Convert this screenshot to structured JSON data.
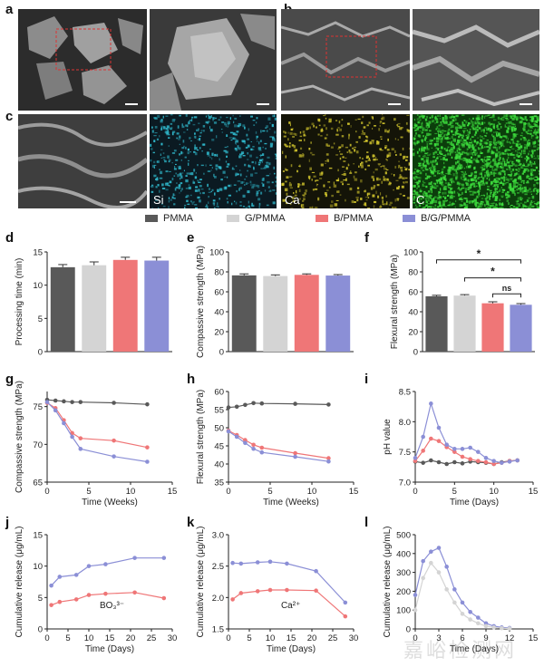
{
  "panels": {
    "a": "a",
    "b": "b",
    "c": "c",
    "d": "d",
    "e": "e",
    "f": "f",
    "g": "g",
    "h": "h",
    "i": "i",
    "j": "j",
    "k": "k",
    "l": "l"
  },
  "eds_labels": [
    "Si",
    "Ca",
    "C"
  ],
  "eds_colors": [
    "#2fb6c9",
    "#cdc12c",
    "#3ddc3d"
  ],
  "legend": [
    {
      "name": "PMMA",
      "color": "#595959"
    },
    {
      "name": "G/PMMA",
      "color": "#d4d4d4"
    },
    {
      "name": "B/PMMA",
      "color": "#ef7677"
    },
    {
      "name": "B/G/PMMA",
      "color": "#8b8fd6"
    }
  ],
  "watermark": "嘉峪检测网",
  "chart_data": [
    {
      "id": "d",
      "type": "bar",
      "categories": [
        "PMMA",
        "G/PMMA",
        "B/PMMA",
        "B/G/PMMA"
      ],
      "values": [
        12.7,
        13.0,
        13.8,
        13.7
      ],
      "errors": [
        0.4,
        0.5,
        0.4,
        0.5
      ],
      "ylabel": "Processing time (min)",
      "ylim": [
        0,
        15
      ],
      "yticks": [
        0,
        5,
        10,
        15
      ]
    },
    {
      "id": "e",
      "type": "bar",
      "categories": [
        "PMMA",
        "G/PMMA",
        "B/PMMA",
        "B/G/PMMA"
      ],
      "values": [
        76.5,
        75.8,
        77.0,
        76.3
      ],
      "errors": [
        1.5,
        1.2,
        1.0,
        1.0
      ],
      "ylabel": "Compassive strength (MPa)",
      "ylim": [
        0,
        100
      ],
      "yticks": [
        0,
        20,
        40,
        60,
        80,
        100
      ]
    },
    {
      "id": "f",
      "type": "bar",
      "categories": [
        "PMMA",
        "G/PMMA",
        "B/PMMA",
        "B/G/PMMA"
      ],
      "values": [
        55.5,
        56.2,
        48.5,
        47.0
      ],
      "errors": [
        1.0,
        1.0,
        1.5,
        1.2
      ],
      "ylabel": "Flexural strength (MPa)",
      "ylim": [
        0,
        100
      ],
      "yticks": [
        0,
        20,
        40,
        60,
        80,
        100
      ],
      "annotations": [
        "*",
        "*",
        "ns"
      ]
    },
    {
      "id": "g",
      "type": "line",
      "xlabel": "Time (Weeks)",
      "ylabel": "Compassive strength (MPa)",
      "xlim": [
        0,
        15
      ],
      "ylim": [
        65,
        77
      ],
      "xticks": [
        0,
        5,
        10,
        15
      ],
      "yticks": [
        65,
        70,
        75
      ],
      "x": [
        0,
        1,
        2,
        3,
        4,
        8,
        12
      ],
      "series": [
        {
          "values": [
            75.9,
            75.8,
            75.7,
            75.6,
            75.6,
            75.5,
            75.3
          ],
          "color": "#595959"
        },
        {
          "values": [
            75.5,
            74.8,
            73.2,
            71.5,
            70.8,
            70.5,
            69.6
          ],
          "color": "#ef7677"
        },
        {
          "values": [
            75.6,
            74.5,
            72.8,
            71.0,
            69.4,
            68.4,
            67.7
          ],
          "color": "#8b8fd6"
        }
      ]
    },
    {
      "id": "h",
      "type": "line",
      "xlabel": "Time (Weeks)",
      "ylabel": "Flexural strength (MPa)",
      "xlim": [
        0,
        15
      ],
      "ylim": [
        35,
        60
      ],
      "xticks": [
        0,
        5,
        10,
        15
      ],
      "yticks": [
        35,
        40,
        45,
        50,
        55,
        60
      ],
      "x": [
        0,
        1,
        2,
        3,
        4,
        8,
        12
      ],
      "series": [
        {
          "values": [
            55.6,
            55.8,
            56.3,
            56.8,
            56.7,
            56.6,
            56.4
          ],
          "color": "#595959"
        },
        {
          "values": [
            49.2,
            48.0,
            46.6,
            45.3,
            44.5,
            43.0,
            41.6
          ],
          "color": "#ef7677"
        },
        {
          "values": [
            49.0,
            47.5,
            45.8,
            44.2,
            43.2,
            42.0,
            40.7
          ],
          "color": "#8b8fd6"
        }
      ]
    },
    {
      "id": "i",
      "type": "line",
      "xlabel": "Time (Days)",
      "ylabel": "pH value",
      "xlim": [
        0,
        15
      ],
      "ylim": [
        7.0,
        8.5
      ],
      "xticks": [
        0,
        5,
        10,
        15
      ],
      "yticks": [
        7.0,
        7.5,
        8.0,
        8.5
      ],
      "x": [
        0,
        1,
        2,
        3,
        4,
        5,
        6,
        7,
        8,
        9,
        10,
        11,
        12,
        13
      ],
      "series": [
        {
          "values": [
            7.34,
            7.32,
            7.36,
            7.33,
            7.3,
            7.33,
            7.31,
            7.34,
            7.33,
            7.32,
            7.3,
            7.33,
            7.35,
            7.36
          ],
          "color": "#595959"
        },
        {
          "values": [
            7.35,
            7.52,
            7.72,
            7.68,
            7.58,
            7.5,
            7.42,
            7.38,
            7.35,
            7.33,
            7.3,
            7.32,
            7.35,
            7.36
          ],
          "color": "#ef7677"
        },
        {
          "values": [
            7.4,
            7.75,
            8.3,
            7.9,
            7.62,
            7.55,
            7.55,
            7.57,
            7.5,
            7.4,
            7.35,
            7.32,
            7.34,
            7.36
          ],
          "color": "#8b8fd6"
        }
      ]
    },
    {
      "id": "j",
      "type": "line",
      "xlabel": "Time (Days)",
      "ylabel": "Cumulative release (μg/mL)",
      "annotation": "BO₃³⁻",
      "xlim": [
        0,
        30
      ],
      "ylim": [
        0,
        15
      ],
      "xticks": [
        0,
        5,
        10,
        15,
        20,
        25,
        30
      ],
      "yticks": [
        0,
        5,
        10,
        15
      ],
      "x": [
        1,
        3,
        7,
        10,
        14,
        21,
        28
      ],
      "series": [
        {
          "values": [
            6.9,
            8.3,
            8.6,
            10.0,
            10.3,
            11.3,
            11.3
          ],
          "color": "#8b8fd6"
        },
        {
          "values": [
            3.8,
            4.3,
            4.7,
            5.4,
            5.6,
            5.8,
            4.9
          ],
          "color": "#ef7677"
        }
      ]
    },
    {
      "id": "k",
      "type": "line",
      "xlabel": "Time (Days)",
      "ylabel": "Cumulative release (μg/mL)",
      "annotation": "Ca²⁺",
      "xlim": [
        0,
        30
      ],
      "ylim": [
        1.5,
        3.0
      ],
      "xticks": [
        0,
        5,
        10,
        15,
        20,
        25,
        30
      ],
      "yticks": [
        1.5,
        2.0,
        2.5,
        3.0
      ],
      "x": [
        1,
        3,
        7,
        10,
        14,
        21,
        28
      ],
      "series": [
        {
          "values": [
            2.55,
            2.54,
            2.56,
            2.57,
            2.54,
            2.42,
            1.92
          ],
          "color": "#8b8fd6"
        },
        {
          "values": [
            1.97,
            2.07,
            2.1,
            2.12,
            2.12,
            2.11,
            1.7
          ],
          "color": "#ef7677"
        }
      ]
    },
    {
      "id": "l",
      "type": "line",
      "xlabel": "Time (Days)",
      "ylabel": "Cumulative release (μg/mL)",
      "xlim": [
        0,
        15
      ],
      "ylim": [
        0,
        500
      ],
      "xticks": [
        0,
        3,
        6,
        9,
        12,
        15
      ],
      "yticks": [
        0,
        100,
        200,
        300,
        400,
        500
      ],
      "x": [
        0,
        1,
        2,
        3,
        4,
        5,
        6,
        7,
        8,
        9,
        10,
        11,
        12
      ],
      "series": [
        {
          "values": [
            180,
            360,
            410,
            430,
            330,
            210,
            140,
            90,
            60,
            30,
            15,
            8,
            5
          ],
          "color": "#8b8fd6"
        },
        {
          "values": [
            100,
            270,
            350,
            300,
            210,
            140,
            80,
            50,
            30,
            15,
            8,
            4,
            2
          ],
          "color": "#d4d4d4"
        }
      ]
    }
  ]
}
